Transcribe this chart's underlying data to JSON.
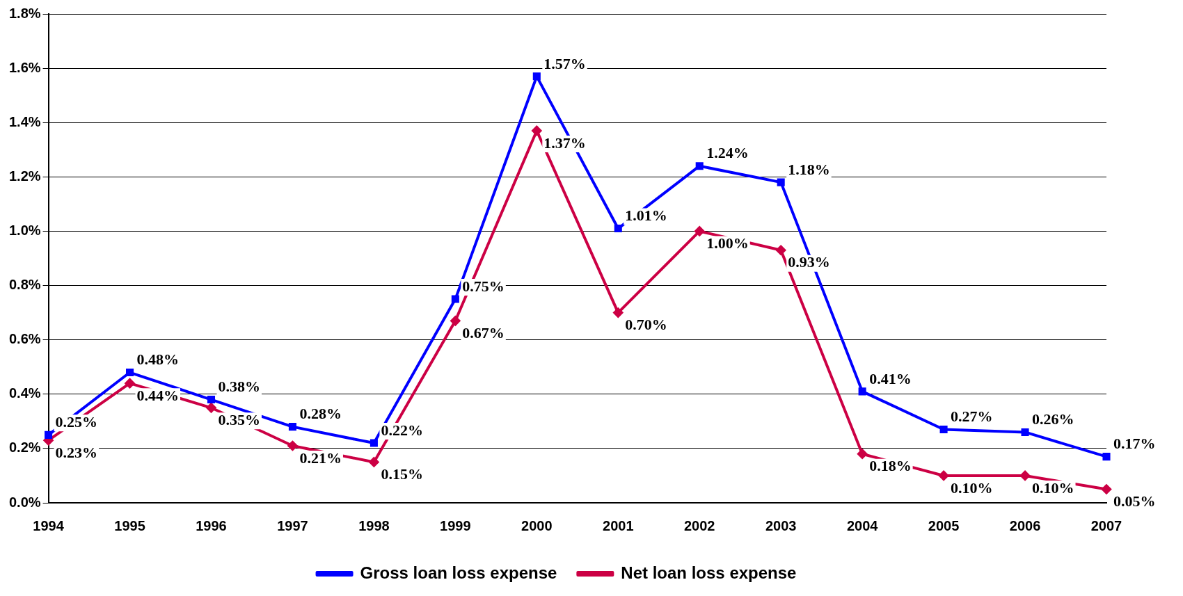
{
  "chart_data": {
    "type": "line",
    "categories": [
      "1994",
      "1995",
      "1996",
      "1997",
      "1998",
      "1999",
      "2000",
      "2001",
      "2002",
      "2003",
      "2004",
      "2005",
      "2006",
      "2007"
    ],
    "series": [
      {
        "name": "Gross loan loss expense",
        "color": "#0000ff",
        "marker": "square",
        "values": [
          0.25,
          0.48,
          0.38,
          0.28,
          0.22,
          0.75,
          1.57,
          1.01,
          1.24,
          1.18,
          0.41,
          0.27,
          0.26,
          0.17
        ],
        "value_labels": [
          "0.25%",
          "0.48%",
          "0.38%",
          "0.28%",
          "0.22%",
          "0.75%",
          "1.57%",
          "1.01%",
          "1.24%",
          "1.18%",
          "0.41%",
          "0.27%",
          "0.26%",
          "0.17%"
        ]
      },
      {
        "name": "Net loan loss expense",
        "color": "#cc0044",
        "marker": "diamond",
        "values": [
          0.23,
          0.44,
          0.35,
          0.21,
          0.15,
          0.67,
          1.37,
          0.7,
          1.0,
          0.93,
          0.18,
          0.1,
          0.1,
          0.05
        ],
        "value_labels": [
          "0.23%",
          "0.44%",
          "0.35%",
          "0.21%",
          "0.15%",
          "0.67%",
          "1.37%",
          "0.70%",
          "1.00%",
          "0.93%",
          "0.18%",
          "0.10%",
          "0.10%",
          "0.05%"
        ]
      }
    ],
    "ylim": [
      0,
      1.8
    ],
    "yticks": [
      {
        "value": 0,
        "label": "0.0%"
      },
      {
        "value": 0.2,
        "label": "0.2%"
      },
      {
        "value": 0.4,
        "label": "0.4%"
      },
      {
        "value": 0.6,
        "label": "0.6%"
      },
      {
        "value": 0.8,
        "label": "0.8%"
      },
      {
        "value": 1.0,
        "label": "1.0%"
      },
      {
        "value": 1.2,
        "label": "1.2%"
      },
      {
        "value": 1.4,
        "label": "1.4%"
      },
      {
        "value": 1.6,
        "label": "1.6%"
      },
      {
        "value": 1.8,
        "label": "1.8%"
      }
    ],
    "grid": "y",
    "legend": "bottom",
    "line_style": "solid"
  }
}
